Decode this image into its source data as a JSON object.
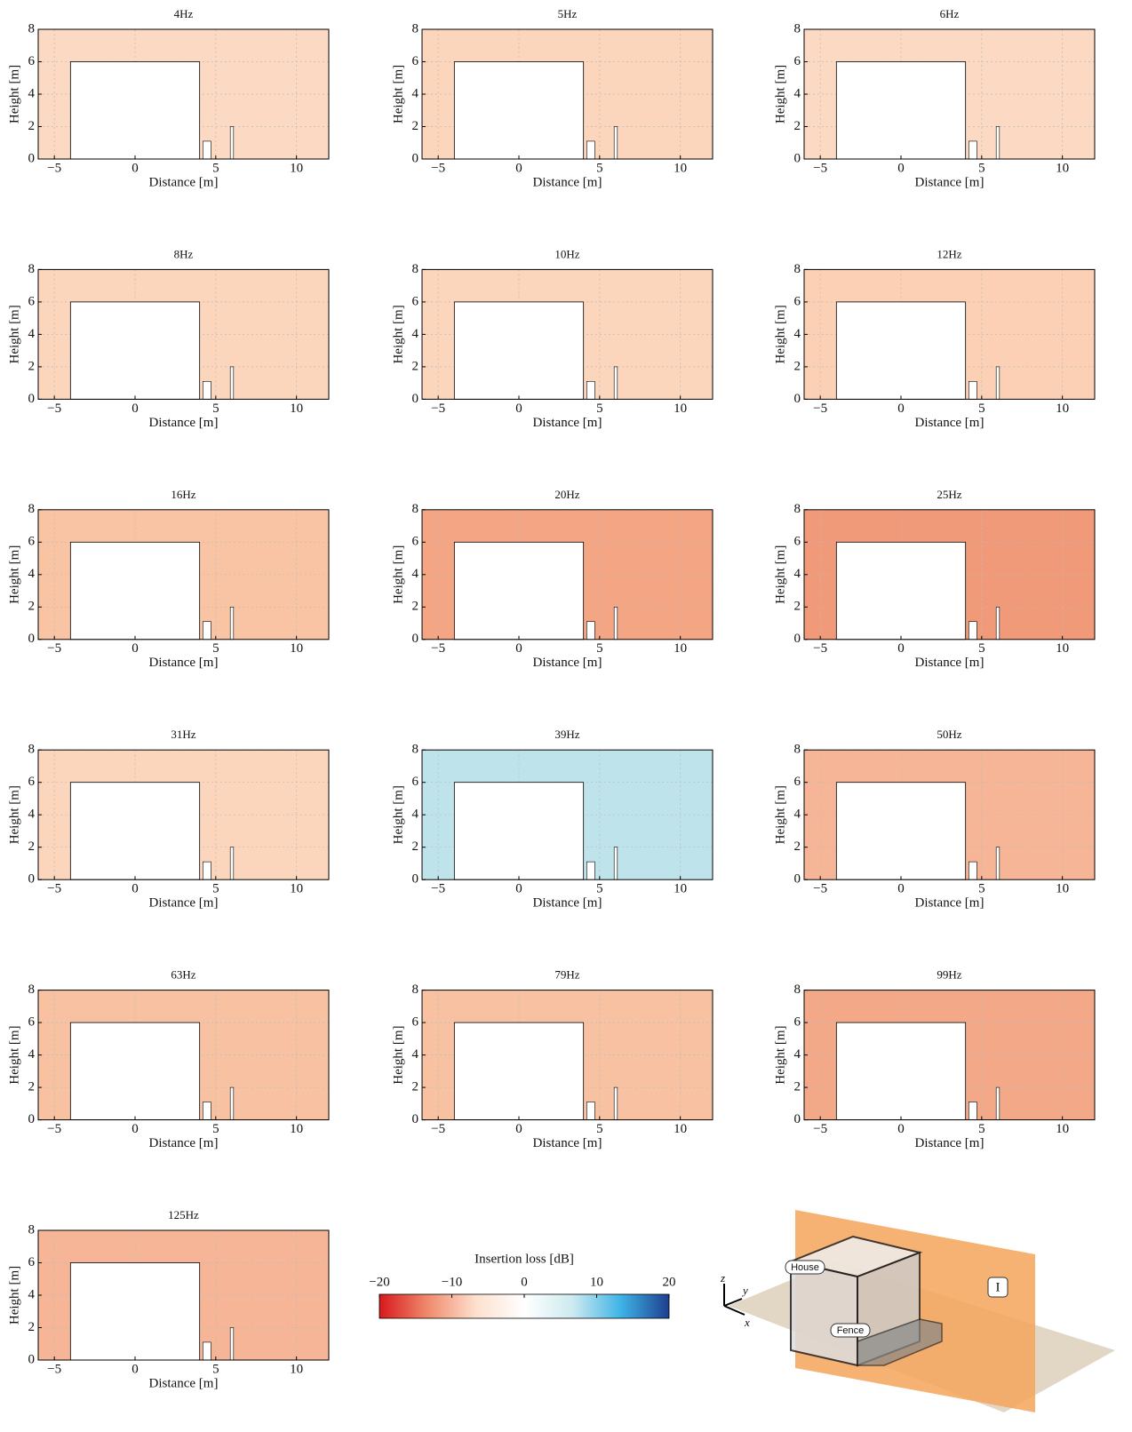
{
  "chart_data": [
    {
      "type": "contour",
      "title": "4Hz",
      "x_label": "Distance [m]",
      "y_label": "Height [m]",
      "xlim": [
        -6,
        12
      ],
      "ylim": [
        0,
        8
      ],
      "xticks": [
        {
          "value": -5,
          "label": "−5"
        },
        0,
        5,
        10
      ],
      "yticks": [
        0,
        2,
        4,
        6,
        8
      ],
      "grid": true,
      "color": "#fbd9c2"
    },
    {
      "type": "contour",
      "title": "5Hz",
      "x_label": "Distance [m]",
      "y_label": "Height [m]",
      "xlim": [
        -6,
        12
      ],
      "ylim": [
        0,
        8
      ],
      "xticks": [
        {
          "value": -5,
          "label": "−5"
        },
        0,
        5,
        10
      ],
      "yticks": [
        0,
        2,
        4,
        6,
        8
      ],
      "grid": true,
      "color": "#fbd5bc"
    },
    {
      "type": "contour",
      "title": "6Hz",
      "x_label": "Distance [m]",
      "y_label": "Height [m]",
      "xlim": [
        -6,
        12
      ],
      "ylim": [
        0,
        8
      ],
      "xticks": [
        {
          "value": -5,
          "label": "−5"
        },
        0,
        5,
        10
      ],
      "yticks": [
        0,
        2,
        4,
        6,
        8
      ],
      "grid": true,
      "color": "#fbd9c2"
    },
    {
      "type": "contour",
      "title": "8Hz",
      "x_label": "Distance [m]",
      "y_label": "Height [m]",
      "xlim": [
        -6,
        12
      ],
      "ylim": [
        0,
        8
      ],
      "xticks": [
        {
          "value": -5,
          "label": "−5"
        },
        0,
        5,
        10
      ],
      "yticks": [
        0,
        2,
        4,
        6,
        8
      ],
      "grid": true,
      "color": "#fbd5bc"
    },
    {
      "type": "contour",
      "title": "10Hz",
      "x_label": "Distance [m]",
      "y_label": "Height [m]",
      "xlim": [
        -6,
        12
      ],
      "ylim": [
        0,
        8
      ],
      "xticks": [
        {
          "value": -5,
          "label": "−5"
        },
        0,
        5,
        10
      ],
      "yticks": [
        0,
        2,
        4,
        6,
        8
      ],
      "grid": true,
      "color": "#fbd5bc"
    },
    {
      "type": "contour",
      "title": "12Hz",
      "x_label": "Distance [m]",
      "y_label": "Height [m]",
      "xlim": [
        -6,
        12
      ],
      "ylim": [
        0,
        8
      ],
      "xticks": [
        {
          "value": -5,
          "label": "−5"
        },
        0,
        5,
        10
      ],
      "yticks": [
        0,
        2,
        4,
        6,
        8
      ],
      "grid": true,
      "color": "#fbd0b4"
    },
    {
      "type": "contour",
      "title": "16Hz",
      "x_label": "Distance [m]",
      "y_label": "Height [m]",
      "xlim": [
        -6,
        12
      ],
      "ylim": [
        0,
        8
      ],
      "xticks": [
        {
          "value": -5,
          "label": "−5"
        },
        0,
        5,
        10
      ],
      "yticks": [
        0,
        2,
        4,
        6,
        8
      ],
      "grid": true,
      "color": "#f9c4a4"
    },
    {
      "type": "contour",
      "title": "20Hz",
      "x_label": "Distance [m]",
      "y_label": "Height [m]",
      "xlim": [
        -6,
        12
      ],
      "ylim": [
        0,
        8
      ],
      "xticks": [
        {
          "value": -5,
          "label": "−5"
        },
        0,
        5,
        10
      ],
      "yticks": [
        0,
        2,
        4,
        6,
        8
      ],
      "grid": true,
      "color": "#f4a584"
    },
    {
      "type": "contour",
      "title": "25Hz",
      "x_label": "Distance [m]",
      "y_label": "Height [m]",
      "xlim": [
        -6,
        12
      ],
      "ylim": [
        0,
        8
      ],
      "xticks": [
        {
          "value": -5,
          "label": "−5"
        },
        0,
        5,
        10
      ],
      "yticks": [
        0,
        2,
        4,
        6,
        8
      ],
      "grid": true,
      "color": "#f19a7a"
    },
    {
      "type": "contour",
      "title": "31Hz",
      "x_label": "Distance [m]",
      "y_label": "Height [m]",
      "xlim": [
        -6,
        12
      ],
      "ylim": [
        0,
        8
      ],
      "xticks": [
        {
          "value": -5,
          "label": "−5"
        },
        0,
        5,
        10
      ],
      "yticks": [
        0,
        2,
        4,
        6,
        8
      ],
      "grid": true,
      "color": "#fbd5bc"
    },
    {
      "type": "contour",
      "title": "39Hz",
      "x_label": "Distance [m]",
      "y_label": "Height [m]",
      "xlim": [
        -6,
        12
      ],
      "ylim": [
        0,
        8
      ],
      "xticks": [
        {
          "value": -5,
          "label": "−5"
        },
        0,
        5,
        10
      ],
      "yticks": [
        0,
        2,
        4,
        6,
        8
      ],
      "grid": true,
      "color": "#bfe3ea"
    },
    {
      "type": "contour",
      "title": "50Hz",
      "x_label": "Distance [m]",
      "y_label": "Height [m]",
      "xlim": [
        -6,
        12
      ],
      "ylim": [
        0,
        8
      ],
      "xticks": [
        {
          "value": -5,
          "label": "−5"
        },
        0,
        5,
        10
      ],
      "yticks": [
        0,
        2,
        4,
        6,
        8
      ],
      "grid": true,
      "color": "#f6b596"
    },
    {
      "type": "contour",
      "title": "63Hz",
      "x_label": "Distance [m]",
      "y_label": "Height [m]",
      "xlim": [
        -6,
        12
      ],
      "ylim": [
        0,
        8
      ],
      "xticks": [
        {
          "value": -5,
          "label": "−5"
        },
        0,
        5,
        10
      ],
      "yticks": [
        0,
        2,
        4,
        6,
        8
      ],
      "grid": true,
      "color": "#f8c2a2"
    },
    {
      "type": "contour",
      "title": "79Hz",
      "x_label": "Distance [m]",
      "y_label": "Height [m]",
      "xlim": [
        -6,
        12
      ],
      "ylim": [
        0,
        8
      ],
      "xticks": [
        {
          "value": -5,
          "label": "−5"
        },
        0,
        5,
        10
      ],
      "yticks": [
        0,
        2,
        4,
        6,
        8
      ],
      "grid": true,
      "color": "#f8c2a2"
    },
    {
      "type": "contour",
      "title": "99Hz",
      "x_label": "Distance [m]",
      "y_label": "Height [m]",
      "xlim": [
        -6,
        12
      ],
      "ylim": [
        0,
        8
      ],
      "xticks": [
        {
          "value": -5,
          "label": "−5"
        },
        0,
        5,
        10
      ],
      "yticks": [
        0,
        2,
        4,
        6,
        8
      ],
      "grid": true,
      "color": "#f3a888"
    },
    {
      "type": "contour",
      "title": "125Hz",
      "x_label": "Distance [m]",
      "y_label": "Height [m]",
      "xlim": [
        -6,
        12
      ],
      "ylim": [
        0,
        8
      ],
      "xticks": [
        {
          "value": -5,
          "label": "−5"
        },
        0,
        5,
        10
      ],
      "yticks": [
        0,
        2,
        4,
        6,
        8
      ],
      "grid": true,
      "color": "#f6b596"
    },
    {
      "type": "colorbar",
      "title": "Insertion loss [dB]",
      "xlim": [
        -20,
        20
      ],
      "xticks": [
        {
          "value": -20,
          "label": "−20"
        },
        {
          "value": -10,
          "label": "−10"
        },
        0,
        10,
        20
      ],
      "colors": [
        "#d7191c",
        "#f08a6c",
        "#fde0cf",
        "#ffffff",
        "#cdeaf0",
        "#3fb4e6",
        "#1d3f8f"
      ]
    }
  ],
  "diagram": {
    "labels": [
      "House",
      "Fence",
      "I",
      "z",
      "y",
      "x"
    ]
  }
}
